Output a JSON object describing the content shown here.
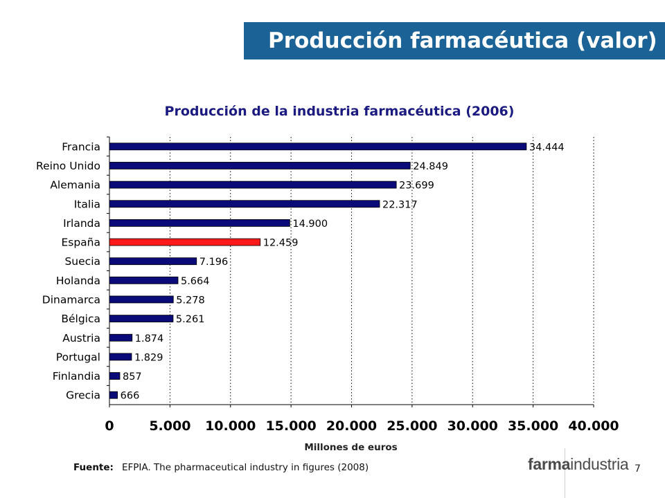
{
  "header": {
    "title": "Producción farmacéutica (valor)"
  },
  "chart_data": {
    "type": "bar",
    "orientation": "horizontal",
    "title": "Producción de la industria farmacéutica (2006)",
    "xlabel": "Millones de euros",
    "ylabel": "",
    "categories": [
      "Francia",
      "Reino Unido",
      "Alemania",
      "Italia",
      "Irlanda",
      "España",
      "Suecia",
      "Holanda",
      "Dinamarca",
      "Bélgica",
      "Austria",
      "Portugal",
      "Finlandia",
      "Grecia"
    ],
    "values": [
      34444,
      24849,
      23699,
      22317,
      14900,
      12459,
      7196,
      5664,
      5278,
      5261,
      1874,
      1829,
      857,
      666
    ],
    "value_labels": [
      "34.444",
      "24.849",
      "23.699",
      "22.317",
      "14.900",
      "12.459",
      "7.196",
      "5.664",
      "5.278",
      "5.261",
      "1.874",
      "1.829",
      "857",
      "666"
    ],
    "xlim": [
      0,
      40000
    ],
    "xticks": [
      0,
      5000,
      10000,
      15000,
      20000,
      25000,
      30000,
      35000,
      40000
    ],
    "xtick_labels": [
      "0",
      "5.000",
      "10.000",
      "15.000",
      "20.000",
      "25.000",
      "30.000",
      "35.000",
      "40.000"
    ],
    "grid": "vertical dotted",
    "colors": {
      "bar": "#0a0a78",
      "highlight": "#ff1a1a",
      "highlight_category": "España"
    }
  },
  "footer": {
    "source_label": "Fuente:",
    "source_text": "EFPIA. The pharmaceutical industry in figures (2008)",
    "logo_bold": "farma",
    "logo_light": "industria",
    "page_number": "7"
  }
}
